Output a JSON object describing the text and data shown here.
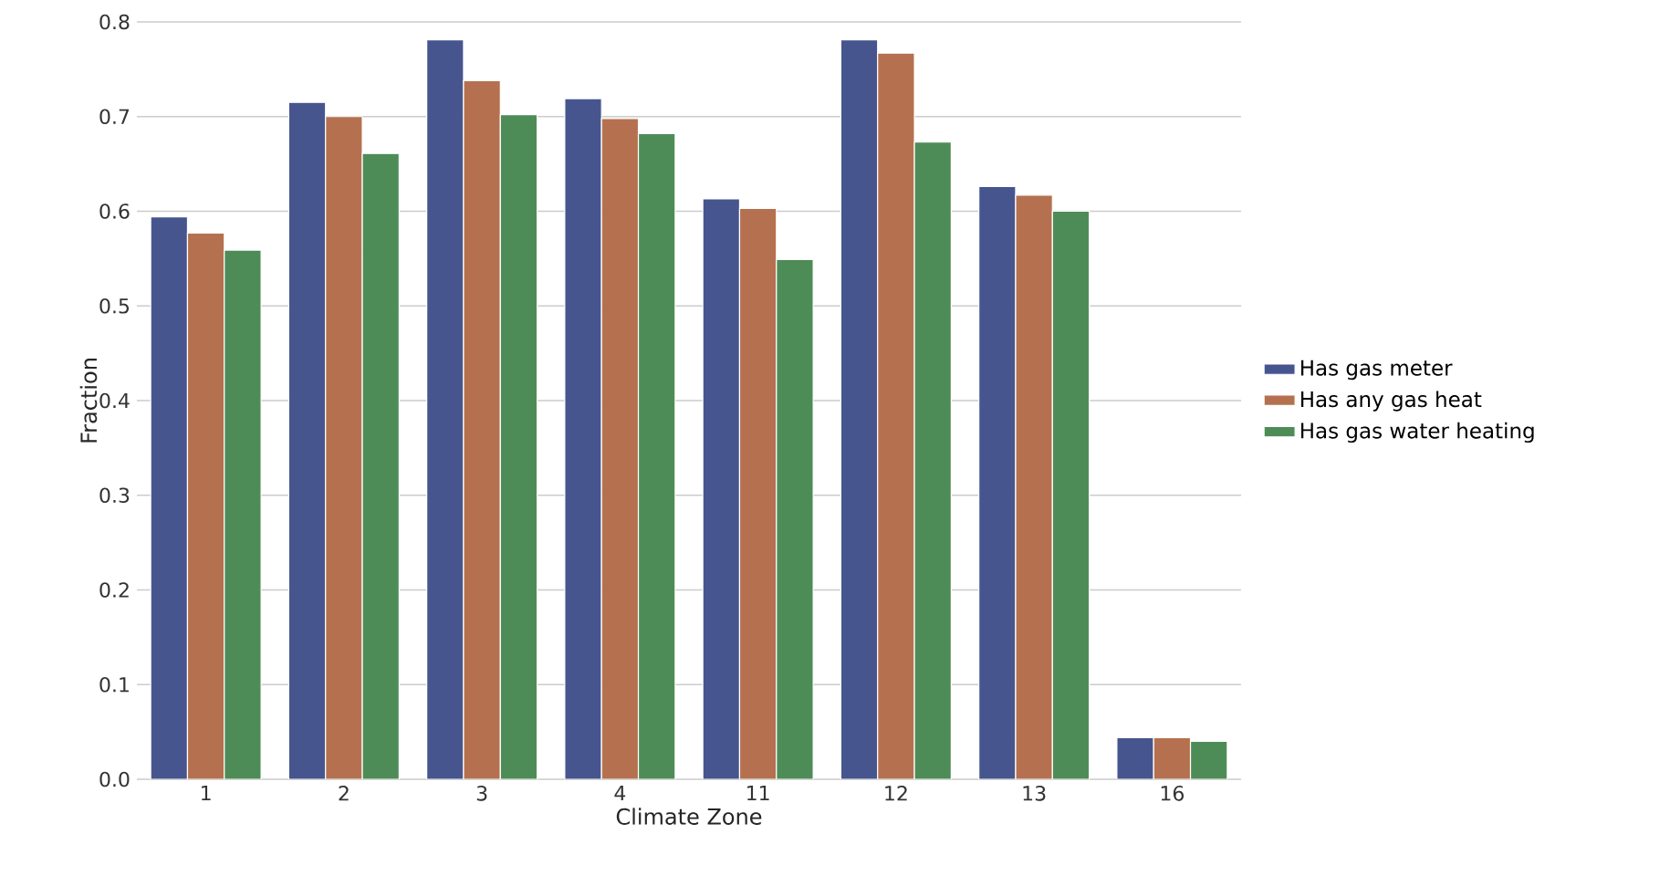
{
  "chart_data": {
    "type": "bar",
    "xlabel": "Climate Zone",
    "ylabel": "Fraction",
    "categories": [
      "1",
      "2",
      "3",
      "4",
      "11",
      "12",
      "13",
      "16"
    ],
    "series": [
      {
        "name": "Has gas meter",
        "color": "#47558f",
        "values": [
          0.594,
          0.715,
          0.781,
          0.719,
          0.613,
          0.781,
          0.626,
          0.044
        ]
      },
      {
        "name": "Has any gas heat",
        "color": "#b5714f",
        "values": [
          0.577,
          0.7,
          0.738,
          0.698,
          0.603,
          0.767,
          0.617,
          0.044
        ]
      },
      {
        "name": "Has gas water heating",
        "color": "#4e8c57",
        "values": [
          0.559,
          0.661,
          0.702,
          0.682,
          0.549,
          0.673,
          0.6,
          0.04
        ]
      }
    ],
    "ylim": [
      0,
      0.8
    ],
    "yticks": [
      {
        "value": 0,
        "label": "0.0"
      },
      0.1,
      0.2,
      0.3,
      0.4,
      0.5,
      0.6,
      0.7,
      0.8
    ],
    "grid": "y",
    "legend": "right"
  }
}
